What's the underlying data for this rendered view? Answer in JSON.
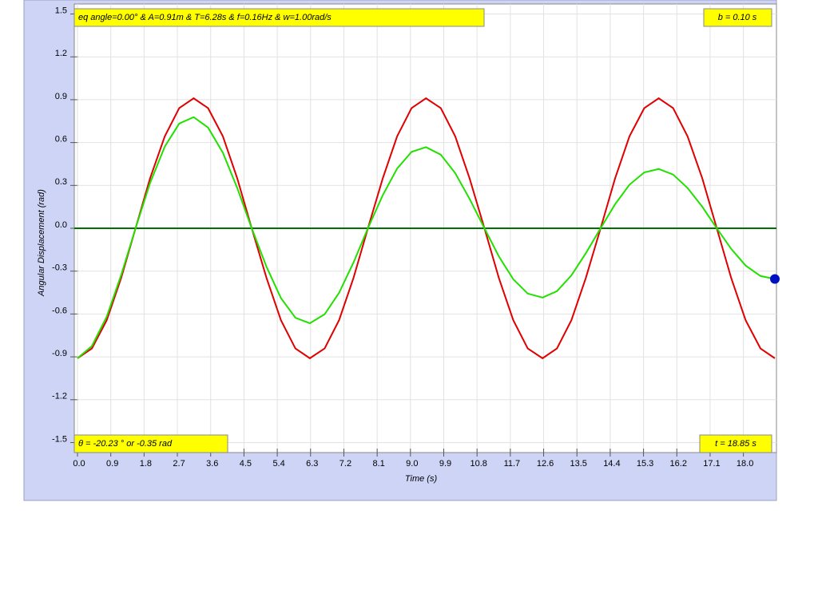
{
  "chart_data": {
    "type": "line",
    "x_label": "Time (s)",
    "y_label": "Angular Displacement (rad)",
    "annotations": {
      "params": "eq angle=0.00° & A=0.91m & T=6.28s & f=0.16Hz & w=1.00rad/s",
      "damping": "b = 0.10 s",
      "angle": "θ = -20.23 ° or -0.35 rad",
      "time": "t = 18.85 s"
    },
    "x": [
      0,
      0.39,
      0.79,
      1.18,
      1.57,
      1.96,
      2.36,
      2.75,
      3.14,
      3.53,
      3.93,
      4.32,
      4.71,
      5.11,
      5.5,
      5.89,
      6.28,
      6.68,
      7.07,
      7.46,
      7.85,
      8.25,
      8.64,
      9.03,
      9.42,
      9.82,
      10.21,
      10.6,
      11,
      11.39,
      11.78,
      12.17,
      12.57,
      12.96,
      13.35,
      13.74,
      14.14,
      14.53,
      14.92,
      15.32,
      15.71,
      16.1,
      16.49,
      16.89,
      17.28,
      17.67,
      18.06,
      18.46,
      18.85
    ],
    "series": [
      {
        "color": "#e00000",
        "values": [
          -0.91,
          -0.841,
          -0.644,
          -0.348,
          0,
          0.348,
          0.644,
          0.841,
          0.91,
          0.841,
          0.644,
          0.348,
          0,
          -0.348,
          -0.644,
          -0.841,
          -0.91,
          -0.841,
          -0.644,
          -0.348,
          0,
          0.348,
          0.644,
          0.841,
          0.91,
          0.841,
          0.644,
          0.348,
          0,
          -0.348,
          -0.644,
          -0.841,
          -0.91,
          -0.841,
          -0.644,
          -0.348,
          0,
          0.348,
          0.644,
          0.841,
          0.91,
          0.841,
          0.644,
          0.348,
          0,
          -0.348,
          -0.644,
          -0.841,
          -0.91
        ]
      },
      {
        "color": "#22e000",
        "values": [
          -0.91,
          -0.824,
          -0.619,
          -0.328,
          0,
          0.316,
          0.572,
          0.733,
          0.778,
          0.705,
          0.529,
          0.281,
          0,
          -0.27,
          -0.489,
          -0.626,
          -0.665,
          -0.602,
          -0.452,
          -0.24,
          0,
          0.231,
          0.418,
          0.535,
          0.568,
          0.515,
          0.386,
          0.205,
          0,
          -0.197,
          -0.357,
          -0.457,
          -0.485,
          -0.44,
          -0.33,
          -0.175,
          0,
          0.168,
          0.305,
          0.391,
          0.415,
          0.376,
          0.282,
          0.15,
          0,
          -0.144,
          -0.261,
          -0.334,
          -0.355
        ]
      }
    ],
    "reference_line": {
      "value": 0,
      "color": "#007000"
    },
    "marker": {
      "x": 18.85,
      "y": -0.355,
      "color": "#0010c0"
    },
    "xlim": [
      0,
      18.85
    ],
    "ylim": [
      -1.57,
      1.57
    ],
    "xticks": [
      {
        "value": 0,
        "label": "0.0"
      },
      0.9,
      1.8,
      2.7,
      3.6,
      4.5,
      5.4,
      6.3,
      7.2,
      8.1,
      {
        "value": 9,
        "label": "9.0"
      },
      9.9,
      10.8,
      11.7,
      12.6,
      13.5,
      14.4,
      15.3,
      16.2,
      17.1,
      {
        "value": 18,
        "label": "18.0"
      }
    ],
    "yticks": [
      -1.5,
      -1.2,
      -0.9,
      -0.6,
      -0.3,
      {
        "value": 0,
        "label": "0.0"
      },
      0.3,
      0.6,
      0.9,
      1.2,
      1.5
    ],
    "grid": true
  }
}
